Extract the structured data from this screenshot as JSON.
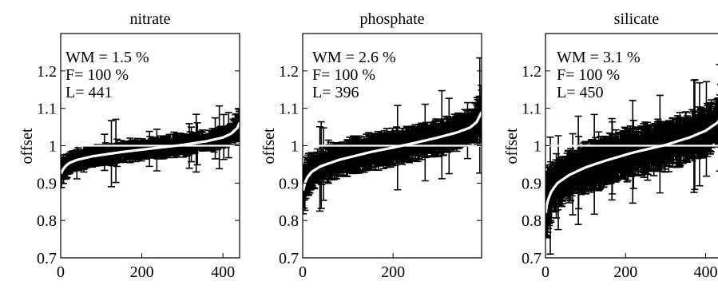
{
  "chart_data": [
    {
      "type": "errorbar-scatter",
      "title": "nitrate",
      "ylabel": "offset",
      "xlim": [
        0,
        441
      ],
      "ylim": [
        0.7,
        1.3
      ],
      "xticks": [
        0,
        200,
        400
      ],
      "yticks": [
        0.7,
        0.8,
        0.9,
        1,
        1.1,
        1.2
      ],
      "annotations": [
        "WM = 1.5 %",
        "F= 100 %",
        "L= 441"
      ],
      "reference_line": 1,
      "n_points": 441,
      "sorted_offset_curve": {
        "x": [
          1,
          5,
          10,
          20,
          40,
          80,
          150,
          220,
          300,
          360,
          400,
          420,
          435,
          441
        ],
        "y": [
          0.925,
          0.935,
          0.943,
          0.953,
          0.962,
          0.972,
          0.983,
          0.992,
          1.002,
          1.012,
          1.022,
          1.032,
          1.047,
          1.062
        ]
      },
      "error_halfwidth": {
        "typical": 0.02,
        "max": 0.09
      }
    },
    {
      "type": "errorbar-scatter",
      "title": "phosphate",
      "ylabel": "offset",
      "xlim": [
        0,
        396
      ],
      "ylim": [
        0.7,
        1.3
      ],
      "xticks": [
        0,
        200
      ],
      "yticks": [
        0.7,
        0.8,
        0.9,
        1,
        1.1,
        1.2
      ],
      "annotations": [
        "WM = 2.6 %",
        "F= 100 %",
        "L= 396"
      ],
      "reference_line": 1,
      "n_points": 396,
      "sorted_offset_curve": {
        "x": [
          1,
          5,
          10,
          20,
          40,
          80,
          150,
          200,
          250,
          300,
          340,
          370,
          385,
          396
        ],
        "y": [
          0.88,
          0.9,
          0.915,
          0.93,
          0.945,
          0.962,
          0.983,
          0.995,
          1.008,
          1.022,
          1.035,
          1.048,
          1.063,
          1.09
        ]
      },
      "error_halfwidth": {
        "typical": 0.035,
        "max": 0.12
      }
    },
    {
      "type": "errorbar-scatter",
      "title": "silicate",
      "ylabel": "offset",
      "xlim": [
        0,
        450
      ],
      "ylim": [
        0.7,
        1.3
      ],
      "xticks": [
        0,
        200,
        400
      ],
      "yticks": [
        0.7,
        0.8,
        0.9,
        1,
        1.1,
        1.2
      ],
      "annotations": [
        "WM = 3.1 %",
        "F= 100 %",
        "L= 450"
      ],
      "reference_line": 1,
      "n_points": 450,
      "sorted_offset_curve": {
        "x": [
          1,
          3,
          8,
          15,
          30,
          60,
          100,
          150,
          220,
          300,
          360,
          400,
          430,
          445,
          450
        ],
        "y": [
          0.82,
          0.84,
          0.86,
          0.878,
          0.9,
          0.922,
          0.942,
          0.96,
          0.982,
          1.002,
          1.022,
          1.04,
          1.062,
          1.085,
          1.11
        ]
      },
      "error_halfwidth": {
        "typical": 0.05,
        "max": 0.15
      }
    }
  ],
  "style": {
    "marker_color": "#000000",
    "curve_color": "#ffffff",
    "axis_color": "#000000"
  }
}
